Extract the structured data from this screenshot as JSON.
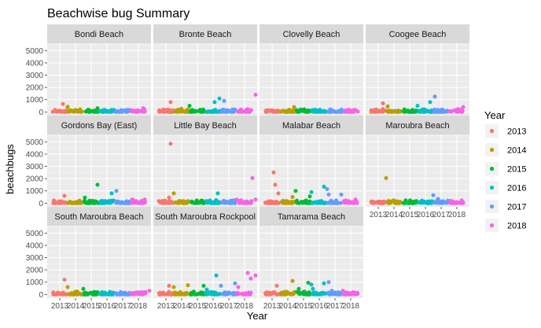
{
  "chart_data": {
    "type": "scatter",
    "title": "Beachwise bug Summary",
    "xlabel": "Year",
    "ylabel": "beachbugs",
    "ylim": [
      -300,
      5600
    ],
    "y_ticks": [
      0,
      1000,
      2000,
      3000,
      4000,
      5000
    ],
    "x_tick_labels": [
      "2013",
      "2014",
      "2015",
      "2016",
      "2017",
      "2018"
    ],
    "legend": {
      "title": "Year",
      "placement": "right",
      "items": [
        {
          "label": "2013",
          "color": "#F8766D"
        },
        {
          "label": "2014",
          "color": "#B79F00"
        },
        {
          "label": "2015",
          "color": "#00BA38"
        },
        {
          "label": "2016",
          "color": "#00BFC4"
        },
        {
          "label": "2017",
          "color": "#619CFF"
        },
        {
          "label": "2018",
          "color": "#F564E3"
        }
      ]
    },
    "grid": true,
    "panels": [
      {
        "title": "Bondi Beach",
        "outliers": [
          [
            2013.2,
            650
          ],
          [
            2013.5,
            420
          ],
          [
            2015.4,
            300
          ],
          [
            2018.3,
            300
          ]
        ]
      },
      {
        "title": "Bronte Beach",
        "outliers": [
          [
            2013.3,
            800
          ],
          [
            2014.5,
            500
          ],
          [
            2016.1,
            800
          ],
          [
            2016.4,
            1100
          ],
          [
            2016.7,
            900
          ],
          [
            2018.7,
            1400
          ]
        ]
      },
      {
        "title": "Clovelly Beach",
        "outliers": [
          [
            2014.4,
            400
          ],
          [
            2016.8,
            150
          ]
        ]
      },
      {
        "title": "Coogee Beach",
        "outliers": [
          [
            2013.3,
            700
          ],
          [
            2013.6,
            450
          ],
          [
            2015.5,
            500
          ],
          [
            2016.3,
            800
          ],
          [
            2016.6,
            1250
          ],
          [
            2018.4,
            400
          ]
        ]
      },
      {
        "title": "Gordons Bay (East)",
        "outliers": [
          [
            2013.3,
            600
          ],
          [
            2014.6,
            450
          ],
          [
            2015.4,
            1500
          ],
          [
            2016.3,
            800
          ],
          [
            2016.6,
            1000
          ],
          [
            2017.6,
            300
          ],
          [
            2018.4,
            300
          ]
        ]
      },
      {
        "title": "Little Bay Beach",
        "outliers": [
          [
            2013.3,
            4850
          ],
          [
            2013.5,
            800
          ],
          [
            2013.2,
            450
          ],
          [
            2016.3,
            800
          ],
          [
            2017.5,
            300
          ],
          [
            2018.5,
            2050
          ],
          [
            2018.7,
            300
          ]
        ]
      },
      {
        "title": "Malabar Beach",
        "outliers": [
          [
            2013.1,
            2500
          ],
          [
            2013.2,
            1500
          ],
          [
            2013.4,
            800
          ],
          [
            2014.5,
            1000
          ],
          [
            2014.3,
            500
          ],
          [
            2015.5,
            900
          ],
          [
            2015.4,
            550
          ],
          [
            2016.3,
            1350
          ],
          [
            2016.5,
            1150
          ],
          [
            2016.6,
            700
          ],
          [
            2017.4,
            700
          ],
          [
            2018.3,
            300
          ]
        ]
      },
      {
        "title": "Maroubra Beach",
        "outliers": [
          [
            2013.5,
            2050
          ],
          [
            2016.5,
            650
          ],
          [
            2016.8,
            350
          ],
          [
            2017.6,
            200
          ]
        ]
      },
      {
        "title": "South Maroubra Beach",
        "outliers": [
          [
            2013.3,
            1200
          ],
          [
            2013.5,
            600
          ],
          [
            2014.5,
            450
          ],
          [
            2018.7,
            300
          ]
        ]
      },
      {
        "title": "South Maroubra Rockpool",
        "outliers": [
          [
            2013.2,
            700
          ],
          [
            2013.5,
            600
          ],
          [
            2014.4,
            750
          ],
          [
            2015.4,
            700
          ],
          [
            2015.6,
            400
          ],
          [
            2016.2,
            1550
          ],
          [
            2016.5,
            700
          ],
          [
            2017.4,
            900
          ],
          [
            2017.6,
            600
          ],
          [
            2018.2,
            1750
          ],
          [
            2018.4,
            1300
          ],
          [
            2018.7,
            1550
          ]
        ]
      },
      {
        "title": "Tamarama Beach",
        "outliers": [
          [
            2013.3,
            700
          ],
          [
            2014.3,
            1100
          ],
          [
            2014.7,
            450
          ],
          [
            2015.3,
            950
          ],
          [
            2015.5,
            800
          ],
          [
            2015.6,
            450
          ],
          [
            2016.3,
            900
          ],
          [
            2016.6,
            1000
          ],
          [
            2016.8,
            300
          ],
          [
            2017.5,
            300
          ]
        ]
      }
    ]
  }
}
